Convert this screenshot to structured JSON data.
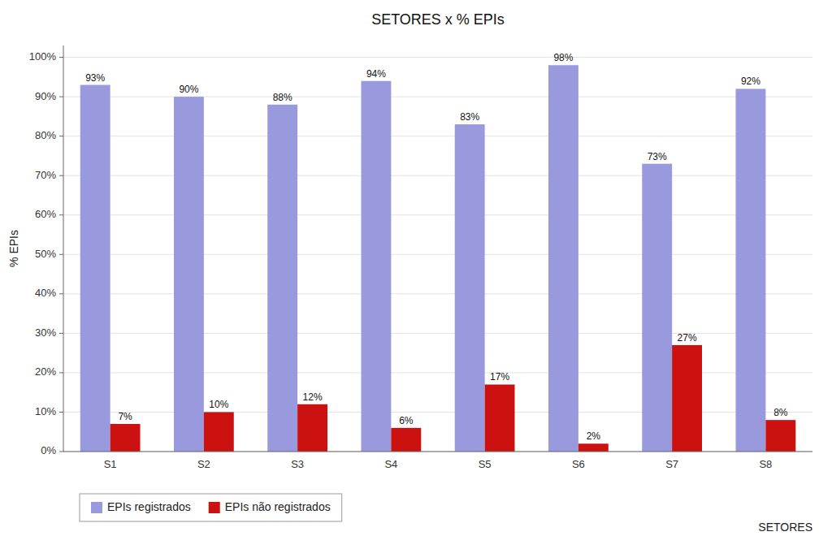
{
  "chart_data": {
    "type": "bar",
    "title": "SETORES x % EPIs",
    "x_label": "SETORES",
    "y_label": "% EPIs",
    "categories": [
      "S1",
      "S2",
      "S3",
      "S4",
      "S5",
      "S6",
      "S7",
      "S8"
    ],
    "series": [
      {
        "name": "EPIs registrados",
        "color": "#9999dd",
        "values": [
          93,
          90,
          88,
          94,
          83,
          98,
          73,
          92
        ],
        "value_labels": [
          "93%",
          "90%",
          "88%",
          "94%",
          "83%",
          "98%",
          "73%",
          "92%"
        ]
      },
      {
        "name": "EPIs não registrados",
        "color": "#cc1111",
        "values": [
          7,
          10,
          12,
          6,
          17,
          2,
          27,
          8
        ],
        "value_labels": [
          "7%",
          "10%",
          "12%",
          "6%",
          "17%",
          "2%",
          "27%",
          "8%"
        ]
      }
    ],
    "ylim": [
      0,
      103
    ],
    "yticks": [
      {
        "value": 0,
        "label": "0%"
      },
      {
        "value": 10,
        "label": "10%"
      },
      {
        "value": 20,
        "label": "20%"
      },
      {
        "value": 30,
        "label": "30%"
      },
      {
        "value": 40,
        "label": "40%"
      },
      {
        "value": 50,
        "label": "50%"
      },
      {
        "value": 60,
        "label": "60%"
      },
      {
        "value": 70,
        "label": "70%"
      },
      {
        "value": 80,
        "label": "80%"
      },
      {
        "value": 90,
        "label": "90%"
      },
      {
        "value": 100,
        "label": "100%"
      }
    ],
    "grid": true,
    "legend": "bottom",
    "data_labels": true
  }
}
